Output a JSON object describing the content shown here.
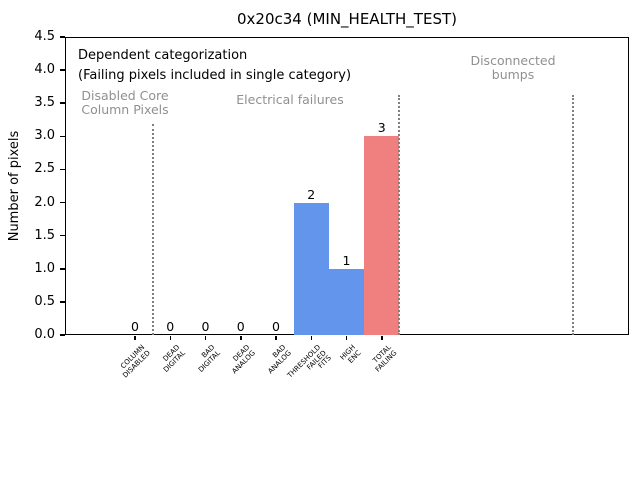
{
  "title": "0x20c34 (MIN_HEALTH_TEST)",
  "annotations": {
    "dependent_line1": "Dependent categorization",
    "dependent_line2": "(Failing pixels included in single category)",
    "zone_disabled": "Disabled Core\nColumn Pixels",
    "zone_electrical": "Electrical failures",
    "zone_bumps": "Disconnected\nbumps"
  },
  "chart_data": {
    "type": "bar",
    "title": "0x20c34 (MIN_HEALTH_TEST)",
    "xlabel": "",
    "ylabel": "Number of pixels",
    "ylim": [
      0,
      4.5
    ],
    "ytick_step": 0.5,
    "grid": false,
    "legend": false,
    "categories": [
      "COLUMN\nDISABLED",
      "DEAD\nDIGITAL",
      "BAD\nDIGITAL",
      "DEAD\nANALOG",
      "BAD\nANALOG",
      "THRESHOLD\nFAILED\nFITS",
      "HIGH\nENC",
      "TOTAL\nFAILING"
    ],
    "values": [
      0,
      0,
      0,
      0,
      0,
      2,
      1,
      3
    ],
    "bar_value_labels": [
      "0",
      "0",
      "0",
      "0",
      "0",
      "2",
      "1",
      "3"
    ],
    "bar_colors": [
      "#6495ED",
      "#6495ED",
      "#6495ED",
      "#6495ED",
      "#6495ED",
      "#6495ED",
      "#6495ED",
      "#F08080"
    ],
    "zones": [
      {
        "label": "Disabled Core\nColumn Pixels",
        "categories": [
          "COLUMN\nDISABLED"
        ]
      },
      {
        "label": "Electrical failures",
        "categories": [
          "DEAD\nDIGITAL",
          "BAD\nDIGITAL",
          "DEAD\nANALOG",
          "BAD\nANALOG",
          "THRESHOLD\nFAILED\nFITS",
          "HIGH\nENC",
          "TOTAL\nFAILING"
        ]
      },
      {
        "label": "Disconnected\nbumps",
        "categories": []
      }
    ],
    "colors": {
      "bar_blue": "#6495ED",
      "bar_red": "#F08080",
      "zone_text": "#909090",
      "separator_gray": "#7f7f7f"
    }
  }
}
